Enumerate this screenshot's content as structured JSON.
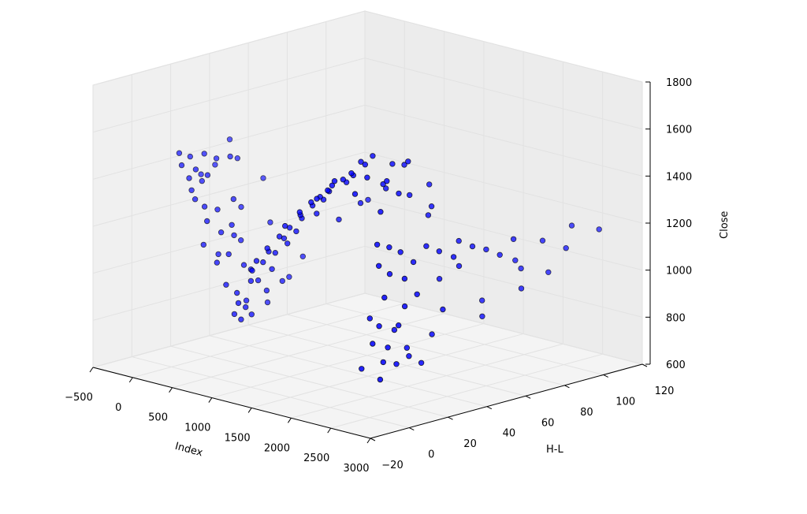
{
  "chart_data": {
    "type": "scatter3d",
    "title": "",
    "xlabel": "Index",
    "ylabel": "H-L",
    "zlabel": "Close",
    "xlim": [
      -500,
      3000
    ],
    "ylim": [
      -20,
      120
    ],
    "zlim": [
      600,
      1800
    ],
    "xticks": [
      -500,
      0,
      500,
      1000,
      1500,
      2000,
      2500,
      3000
    ],
    "yticks": [
      -20,
      0,
      20,
      40,
      60,
      80,
      100,
      120
    ],
    "zticks": [
      600,
      800,
      1000,
      1200,
      1400,
      1600,
      1800
    ],
    "xtick_labels": [
      "−500",
      "0",
      "500",
      "1000",
      "1500",
      "2000",
      "2500",
      "3000"
    ],
    "ytick_labels": [
      "−20",
      "0",
      "20",
      "40",
      "60",
      "80",
      "100",
      "120"
    ],
    "ztick_labels": [
      "600",
      "800",
      "1000",
      "1200",
      "1400",
      "1600",
      "1800"
    ],
    "grid": true,
    "marker_color": "#0000ff",
    "marker_edge": "#000000",
    "pane_color": "#f2f2f2",
    "points_columns": [
      "Index",
      "H-L",
      "Close"
    ],
    "points": [
      [
        0,
        4,
        1500
      ],
      [
        40,
        8,
        1480
      ],
      [
        80,
        2,
        1460
      ],
      [
        120,
        12,
        1490
      ],
      [
        160,
        6,
        1440
      ],
      [
        200,
        15,
        1470
      ],
      [
        60,
        20,
        1420
      ],
      [
        100,
        5,
        1400
      ],
      [
        140,
        10,
        1380
      ],
      [
        180,
        3,
        1360
      ],
      [
        220,
        25,
        1450
      ],
      [
        260,
        8,
        1420
      ],
      [
        30,
        14,
        1390
      ],
      [
        300,
        18,
        1480
      ],
      [
        0,
        30,
        1500
      ],
      [
        250,
        2,
        1330
      ],
      [
        320,
        4,
        1300
      ],
      [
        360,
        9,
        1280
      ],
      [
        400,
        2,
        1250
      ],
      [
        440,
        14,
        1320
      ],
      [
        480,
        6,
        1200
      ],
      [
        520,
        11,
        1180
      ],
      [
        340,
        22,
        1260
      ],
      [
        380,
        1,
        1150
      ],
      [
        420,
        7,
        1100
      ],
      [
        460,
        17,
        1140
      ],
      [
        500,
        3,
        1080
      ],
      [
        540,
        9,
        1230
      ],
      [
        300,
        35,
        1350
      ],
      [
        560,
        28,
        1200
      ],
      [
        600,
        5,
        1120
      ],
      [
        620,
        12,
        1060
      ],
      [
        640,
        2,
        1000
      ],
      [
        680,
        6,
        960
      ],
      [
        700,
        10,
        920
      ],
      [
        720,
        3,
        880
      ],
      [
        660,
        14,
        1040
      ],
      [
        740,
        8,
        900
      ],
      [
        760,
        18,
        950
      ],
      [
        780,
        4,
        860
      ],
      [
        800,
        12,
        1010
      ],
      [
        820,
        1,
        940
      ],
      [
        840,
        7,
        880
      ],
      [
        860,
        22,
        990
      ],
      [
        880,
        5,
        1030
      ],
      [
        600,
        25,
        870
      ],
      [
        900,
        15,
        1060
      ],
      [
        750,
        30,
        980
      ],
      [
        920,
        4,
        1080
      ],
      [
        960,
        8,
        1110
      ],
      [
        1000,
        3,
        1130
      ],
      [
        1040,
        11,
        1150
      ],
      [
        1080,
        6,
        1170
      ],
      [
        1120,
        14,
        1190
      ],
      [
        1160,
        2,
        1200
      ],
      [
        1200,
        9,
        1230
      ],
      [
        1240,
        5,
        1250
      ],
      [
        1280,
        12,
        1260
      ],
      [
        1320,
        7,
        1290
      ],
      [
        1360,
        3,
        1310
      ],
      [
        1400,
        10,
        1330
      ],
      [
        1440,
        16,
        1340
      ],
      [
        1480,
        6,
        1360
      ],
      [
        1520,
        4,
        1380
      ],
      [
        1560,
        9,
        1400
      ],
      [
        1600,
        13,
        1420
      ],
      [
        1640,
        5,
        1430
      ],
      [
        1680,
        8,
        1450
      ],
      [
        1720,
        11,
        1470
      ],
      [
        1760,
        3,
        1460
      ],
      [
        1800,
        7,
        1490
      ],
      [
        1840,
        15,
        1510
      ],
      [
        1880,
        6,
        1520
      ],
      [
        1920,
        10,
        1540
      ],
      [
        1960,
        4,
        1550
      ],
      [
        2000,
        12,
        1560
      ],
      [
        1500,
        25,
        1300
      ],
      [
        1700,
        28,
        1380
      ],
      [
        1950,
        18,
        1600
      ],
      [
        2000,
        22,
        1620
      ],
      [
        2050,
        9,
        1580
      ],
      [
        2100,
        14,
        1610
      ],
      [
        2150,
        26,
        1590
      ],
      [
        2200,
        11,
        1570
      ],
      [
        2250,
        30,
        1600
      ],
      [
        2300,
        17,
        1550
      ],
      [
        2080,
        35,
        1560
      ],
      [
        2180,
        20,
        1520
      ],
      [
        2280,
        24,
        1480
      ],
      [
        2120,
        8,
        1500
      ],
      [
        2220,
        32,
        1450
      ],
      [
        2320,
        13,
        1430
      ],
      [
        2020,
        28,
        1470
      ],
      [
        2350,
        38,
        1400
      ],
      [
        2150,
        45,
        1460
      ],
      [
        2260,
        40,
        1350
      ],
      [
        2350,
        10,
        1300
      ],
      [
        2380,
        15,
        1280
      ],
      [
        2400,
        20,
        1250
      ],
      [
        2420,
        8,
        1220
      ],
      [
        2440,
        25,
        1200
      ],
      [
        2460,
        12,
        1180
      ],
      [
        2480,
        30,
        1260
      ],
      [
        2500,
        18,
        1150
      ],
      [
        2520,
        35,
        1230
      ],
      [
        2540,
        6,
        1100
      ],
      [
        2560,
        22,
        1080
      ],
      [
        2580,
        40,
        1200
      ],
      [
        2600,
        14,
        1050
      ],
      [
        2380,
        5,
        1000
      ],
      [
        2400,
        9,
        960
      ],
      [
        2420,
        16,
        930
      ],
      [
        2440,
        4,
        900
      ],
      [
        2460,
        11,
        870
      ],
      [
        2480,
        20,
        850
      ],
      [
        2500,
        7,
        820
      ],
      [
        2520,
        13,
        800
      ],
      [
        2540,
        25,
        780
      ],
      [
        2560,
        3,
        760
      ],
      [
        2580,
        17,
        830
      ],
      [
        2600,
        28,
        900
      ],
      [
        2620,
        10,
        980
      ],
      [
        2640,
        32,
        1000
      ],
      [
        2450,
        38,
        1100
      ],
      [
        2550,
        44,
        1150
      ],
      [
        2350,
        2,
        790
      ],
      [
        2400,
        50,
        1230
      ],
      [
        2450,
        55,
        1200
      ],
      [
        2500,
        60,
        1180
      ],
      [
        2550,
        65,
        1150
      ],
      [
        2600,
        70,
        1210
      ],
      [
        2500,
        75,
        1100
      ],
      [
        2450,
        80,
        1050
      ],
      [
        2600,
        85,
        1170
      ],
      [
        2550,
        90,
        1020
      ],
      [
        2650,
        95,
        1120
      ],
      [
        2600,
        100,
        1200
      ],
      [
        2700,
        110,
        1170
      ],
      [
        2400,
        62,
        950
      ],
      [
        2500,
        58,
        900
      ],
      [
        2650,
        72,
        1000
      ],
      [
        800,
        35,
        1060
      ],
      [
        1500,
        40,
        1350
      ]
    ]
  }
}
